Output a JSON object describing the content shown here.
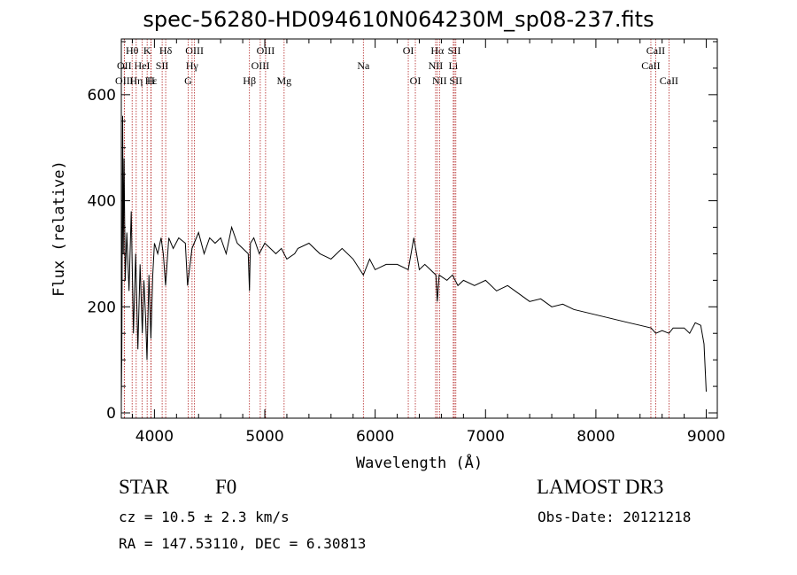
{
  "chart_data": {
    "type": "line",
    "title": "spec-56280-HD094610N064230M_sp08-237.fits",
    "xlabel": "Wavelength (Å)",
    "ylabel": "Flux (relative)",
    "xlim": [
      3700,
      9100
    ],
    "ylim": [
      -10,
      705
    ],
    "xticks": [
      4000,
      5000,
      6000,
      7000,
      8000,
      9000
    ],
    "yticks": [
      0,
      200,
      400,
      600
    ],
    "xtick_labels": [
      "4000",
      "5000",
      "6000",
      "7000",
      "8000",
      "9000"
    ],
    "ytick_labels": [
      "0",
      "200",
      "400",
      "600"
    ],
    "line_color": "#000000",
    "marker_color": "#b22222",
    "series": [
      {
        "name": "flux",
        "x": [
          3700,
          3705,
          3712,
          3718,
          3725,
          3735,
          3750,
          3770,
          3790,
          3810,
          3830,
          3850,
          3870,
          3890,
          3905,
          3920,
          3933,
          3950,
          3968,
          3985,
          4000,
          4030,
          4060,
          4080,
          4101,
          4130,
          4170,
          4220,
          4280,
          4300,
          4340,
          4400,
          4450,
          4500,
          4550,
          4600,
          4650,
          4700,
          4750,
          4800,
          4850,
          4861,
          4870,
          4900,
          4950,
          5000,
          5050,
          5100,
          5150,
          5200,
          5270,
          5300,
          5400,
          5500,
          5600,
          5700,
          5800,
          5893,
          5950,
          6000,
          6100,
          6200,
          6300,
          6350,
          6400,
          6450,
          6500,
          6550,
          6563,
          6580,
          6650,
          6700,
          6750,
          6800,
          6900,
          7000,
          7100,
          7200,
          7300,
          7400,
          7500,
          7600,
          7700,
          7800,
          7900,
          8000,
          8100,
          8200,
          8300,
          8400,
          8500,
          8542,
          8600,
          8662,
          8700,
          8800,
          8850,
          8900,
          8950,
          8980,
          9000
        ],
        "y": [
          20,
          120,
          560,
          300,
          480,
          250,
          340,
          230,
          380,
          150,
          300,
          120,
          280,
          150,
          250,
          180,
          100,
          260,
          140,
          260,
          320,
          300,
          330,
          300,
          240,
          330,
          310,
          330,
          320,
          240,
          310,
          340,
          300,
          330,
          320,
          330,
          300,
          350,
          320,
          310,
          300,
          230,
          320,
          330,
          300,
          320,
          310,
          300,
          310,
          290,
          300,
          310,
          320,
          300,
          290,
          310,
          290,
          260,
          290,
          270,
          280,
          280,
          270,
          330,
          270,
          280,
          270,
          260,
          210,
          260,
          250,
          260,
          240,
          250,
          240,
          250,
          230,
          240,
          225,
          210,
          215,
          200,
          205,
          195,
          190,
          185,
          180,
          175,
          170,
          165,
          160,
          150,
          155,
          150,
          160,
          160,
          150,
          170,
          165,
          130,
          40
        ]
      }
    ],
    "lines": [
      {
        "name": "Hθ",
        "x": 3798,
        "row": 1
      },
      {
        "name": "OII",
        "x": 3727,
        "row": 2
      },
      {
        "name": "OIII",
        "x": 3727,
        "row": 3
      },
      {
        "name": "K",
        "x": 3934,
        "row": 1
      },
      {
        "name": "HeI",
        "x": 3889,
        "row": 2
      },
      {
        "name": "Hε",
        "x": 3970,
        "row": 3
      },
      {
        "name": "Hη",
        "x": 3835,
        "row": 3
      },
      {
        "name": "SII",
        "x": 4070,
        "row": 2
      },
      {
        "name": "Hδ",
        "x": 4102,
        "row": 1
      },
      {
        "name": "H",
        "x": 3968,
        "row": 3
      },
      {
        "name": "OIII",
        "x": 4363,
        "row": 1
      },
      {
        "name": "Hγ",
        "x": 4341,
        "row": 2
      },
      {
        "name": "G",
        "x": 4305,
        "row": 3
      },
      {
        "name": "OIII",
        "x": 5007,
        "row": 1
      },
      {
        "name": "OIII",
        "x": 4959,
        "row": 2
      },
      {
        "name": "Hβ",
        "x": 4861,
        "row": 3
      },
      {
        "name": "Mg",
        "x": 5175,
        "row": 3
      },
      {
        "name": "Na",
        "x": 5893,
        "row": 2
      },
      {
        "name": "OI",
        "x": 6300,
        "row": 1
      },
      {
        "name": "OI",
        "x": 6364,
        "row": 3
      },
      {
        "name": "Hα",
        "x": 6563,
        "row": 1
      },
      {
        "name": "NII",
        "x": 6548,
        "row": 2
      },
      {
        "name": "NII",
        "x": 6583,
        "row": 3
      },
      {
        "name": "SII",
        "x": 6717,
        "row": 1
      },
      {
        "name": "Li",
        "x": 6708,
        "row": 2
      },
      {
        "name": "SII",
        "x": 6731,
        "row": 3
      },
      {
        "name": "CaII",
        "x": 8542,
        "row": 1
      },
      {
        "name": "CaII",
        "x": 8498,
        "row": 2
      },
      {
        "name": "CaII",
        "x": 8662,
        "row": 3
      }
    ]
  },
  "info": {
    "object_class": "STAR",
    "subclass": "F0",
    "survey": "LAMOST DR3",
    "cz": "cz = 10.5 ± 2.3 km/s",
    "obs_date": "Obs-Date: 20121218",
    "radec": "RA = 147.53110, DEC =   6.30813"
  }
}
